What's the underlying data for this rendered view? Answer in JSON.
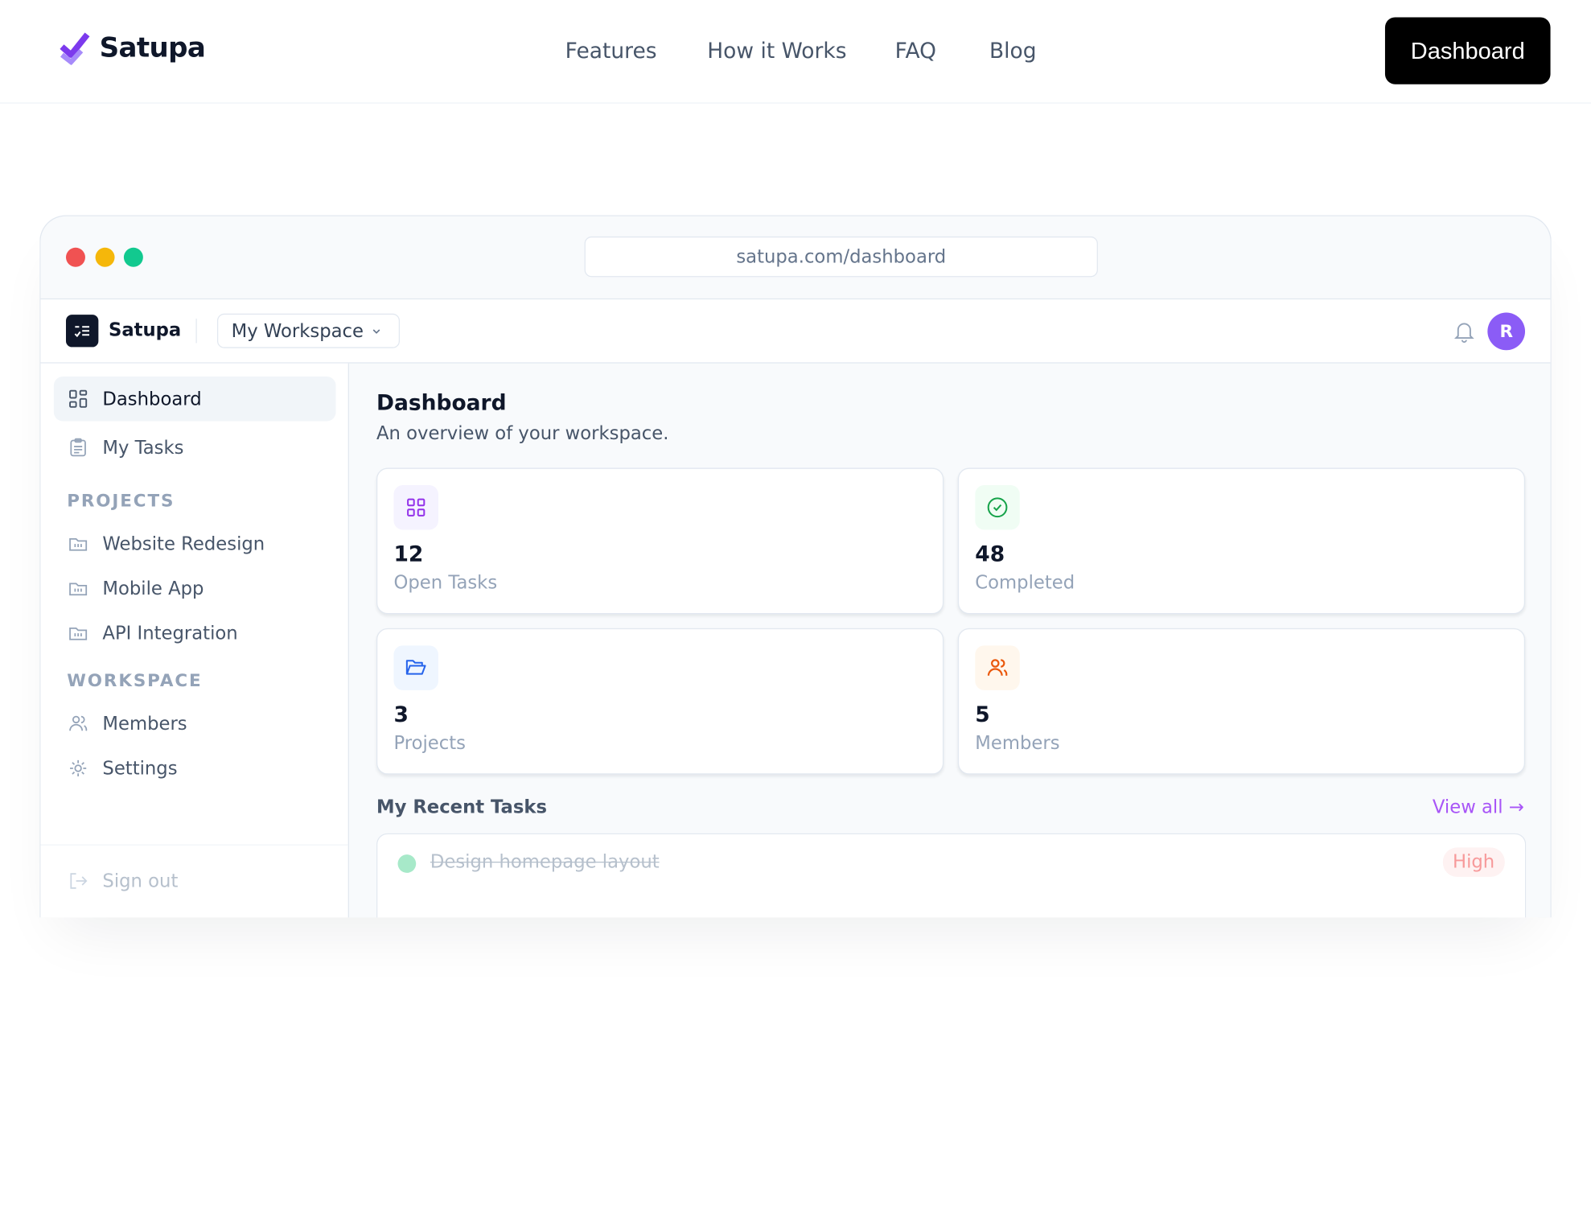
{
  "site": {
    "brand": "Satupa",
    "nav": [
      "Features",
      "How it Works",
      "FAQ",
      "Blog"
    ],
    "cta": "Dashboard"
  },
  "browser": {
    "url": "satupa.com/dashboard",
    "dots": [
      "#f05252",
      "#f5b70a",
      "#12c98f"
    ]
  },
  "app": {
    "brand": "Satupa",
    "workspace": "My Workspace",
    "avatar": "R",
    "avatar_color": "#8b5cf6",
    "sidebar": {
      "items": [
        {
          "label": "Dashboard",
          "icon": "grid-icon"
        },
        {
          "label": "My Tasks",
          "icon": "clipboard-icon"
        }
      ],
      "projects_heading": "PROJECTS",
      "projects": [
        "Website Redesign",
        "Mobile App",
        "API Integration"
      ],
      "workspace_heading": "WORKSPACE",
      "workspace": [
        {
          "label": "Members",
          "icon": "users-icon"
        },
        {
          "label": "Settings",
          "icon": "gear-icon"
        }
      ],
      "signout": "Sign out"
    },
    "main": {
      "title": "Dashboard",
      "subtitle": "An overview of your workspace.",
      "stats": [
        {
          "value": "12",
          "label": "Open Tasks",
          "icon": "grid-icon",
          "color": "#9333ea",
          "bg": "#f5f3ff"
        },
        {
          "value": "48",
          "label": "Completed",
          "icon": "check-circle-icon",
          "color": "#16a34a",
          "bg": "#f0fdf4"
        },
        {
          "value": "3",
          "label": "Projects",
          "icon": "folder-open-icon",
          "color": "#2563eb",
          "bg": "#eff6ff"
        },
        {
          "value": "5",
          "label": "Members",
          "icon": "users-icon",
          "color": "#ea580c",
          "bg": "#fff7ed"
        }
      ],
      "recent_title": "My Recent Tasks",
      "view_all": "View all →",
      "tasks": [
        {
          "title": "Design homepage layout",
          "priority": "High",
          "done": true
        }
      ]
    }
  }
}
